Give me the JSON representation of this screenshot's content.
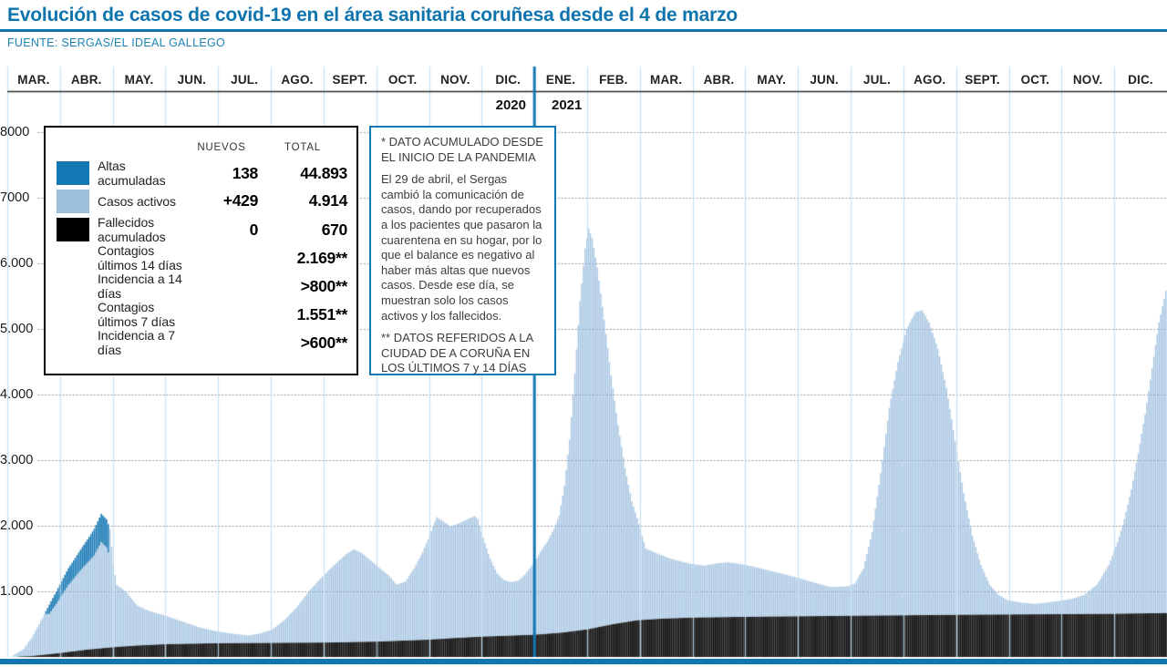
{
  "title": "Evolución de casos de covid-19 en el área sanitaria coruñesa desde el 4 de marzo",
  "source": "FUENTE: SERGAS/EL IDEAL GALLEGO",
  "colors": {
    "accent_blue": "#1176b2",
    "bar_active_blue": "#a6c5e2",
    "bar_altas_dark_blue": "#1478b4",
    "deaths_black": "#0e0e0e",
    "deaths_gap_gray": "#474747",
    "month_grid_blue": "#b3d6ea",
    "dotted_grid_gray": "#6e6e6e",
    "header_rule_dark": "#2b2b2b"
  },
  "timeline": {
    "months": [
      "MAR.",
      "ABR.",
      "MAY.",
      "JUN.",
      "JUL.",
      "AGO.",
      "SEPT.",
      "OCT.",
      "NOV.",
      "DIC.",
      "ENE.",
      "FEB.",
      "MAR.",
      "ABR.",
      "MAY.",
      "JUN.",
      "JUL.",
      "AGO.",
      "SEPT.",
      "OCT.",
      "NOV.",
      "DIC."
    ],
    "year_left": "2020",
    "year_right": "2021"
  },
  "y_axis": {
    "labels": [
      "8000",
      "7000",
      "6.000",
      "5.000",
      "4.000",
      "3.000",
      "2.000",
      "1.000"
    ],
    "values": [
      8000,
      7000,
      6000,
      5000,
      4000,
      3000,
      2000,
      1000
    ]
  },
  "legend": {
    "col_headers": [
      "NUEVOS",
      "TOTAL"
    ],
    "rows": [
      {
        "swatch": "#1478b4",
        "label": "Altas acumuladas",
        "nuevos": "138",
        "total": "44.893"
      },
      {
        "swatch": "#9dc0dd",
        "label": "Casos activos",
        "nuevos": "+429",
        "total": "4.914"
      },
      {
        "swatch": "#000000",
        "label": "Fallecidos acumulados",
        "nuevos": "0",
        "total": "670"
      },
      {
        "swatch": null,
        "label": "Contagios últimos 14 días",
        "nuevos": "",
        "total": "2.169**"
      },
      {
        "swatch": null,
        "label": "Incidencia a 14 días",
        "nuevos": "",
        "total": ">800**"
      },
      {
        "swatch": null,
        "label": "Contagios últimos 7 días",
        "nuevos": "",
        "total": "1.551**"
      },
      {
        "swatch": null,
        "label": "Incidencia a 7 días",
        "nuevos": "",
        "total": ">600**"
      }
    ]
  },
  "annotation": {
    "p1": "* DATO ACUMULADO DESDE EL INICIO DE LA PANDEMIA",
    "p2": "El 29 de abril, el Sergas cambió la comunicación de casos, dando por recuperados a los pacientes que pasaron la cuarentena en su hogar, por lo que el balance es negativo al haber más altas que nuevos casos. Desde ese día, se muestran solo los casos activos y los fallecidos.",
    "p3": "** DATOS REFERIDOS A LA CIUDAD DE A CORUÑA EN LOS ÚLTIMOS 7 y 14 DÍAS"
  },
  "chart_data": {
    "type": "bar",
    "stacked": true,
    "note": "Daily stacked bars; x is day index from 2020-03-01 (0) to 2021-12-31 (670). Values interpolated between waypoints read from the chart.",
    "x_range_days": [
      0,
      670
    ],
    "ylim": [
      0,
      8000
    ],
    "grid": true,
    "year_divider_after_month_index": 9,
    "series": [
      {
        "name": "Fallecidos acumulados",
        "color": "#0e0e0e",
        "waypoints": [
          [
            0,
            0
          ],
          [
            14,
            15
          ],
          [
            30,
            60
          ],
          [
            45,
            110
          ],
          [
            61,
            150
          ],
          [
            75,
            175
          ],
          [
            91,
            195
          ],
          [
            121,
            210
          ],
          [
            153,
            215
          ],
          [
            184,
            220
          ],
          [
            214,
            235
          ],
          [
            229,
            250
          ],
          [
            244,
            265
          ],
          [
            259,
            290
          ],
          [
            274,
            310
          ],
          [
            290,
            325
          ],
          [
            305,
            340
          ],
          [
            320,
            370
          ],
          [
            335,
            420
          ],
          [
            350,
            500
          ],
          [
            364,
            560
          ],
          [
            379,
            585
          ],
          [
            395,
            600
          ],
          [
            425,
            612
          ],
          [
            456,
            620
          ],
          [
            486,
            628
          ],
          [
            517,
            635
          ],
          [
            548,
            643
          ],
          [
            578,
            648
          ],
          [
            609,
            653
          ],
          [
            639,
            658
          ],
          [
            670,
            670
          ]
        ]
      },
      {
        "name": "Casos activos",
        "color": "#a6c5e2",
        "waypoints": [
          [
            0,
            0
          ],
          [
            2,
            0
          ],
          [
            3,
            20
          ],
          [
            9,
            110
          ],
          [
            14,
            285
          ],
          [
            19,
            520
          ],
          [
            24,
            755
          ],
          [
            30,
            1040
          ],
          [
            35,
            1275
          ],
          [
            40,
            1460
          ],
          [
            45,
            1640
          ],
          [
            50,
            1830
          ],
          [
            54,
            2050
          ],
          [
            57,
            1960
          ],
          [
            59,
            1805
          ],
          [
            61,
            1250
          ],
          [
            63,
            945
          ],
          [
            68,
            840
          ],
          [
            75,
            605
          ],
          [
            82,
            515
          ],
          [
            91,
            435
          ],
          [
            101,
            340
          ],
          [
            111,
            245
          ],
          [
            121,
            180
          ],
          [
            131,
            140
          ],
          [
            139,
            115
          ],
          [
            146,
            145
          ],
          [
            153,
            205
          ],
          [
            160,
            345
          ],
          [
            167,
            535
          ],
          [
            174,
            780
          ],
          [
            181,
            980
          ],
          [
            188,
            1160
          ],
          [
            195,
            1325
          ],
          [
            200,
            1415
          ],
          [
            205,
            1350
          ],
          [
            213,
            1165
          ],
          [
            220,
            1010
          ],
          [
            225,
            855
          ],
          [
            230,
            900
          ],
          [
            235,
            1095
          ],
          [
            240,
            1340
          ],
          [
            244,
            1585
          ],
          [
            248,
            1860
          ],
          [
            252,
            1785
          ],
          [
            256,
            1705
          ],
          [
            261,
            1745
          ],
          [
            266,
            1800
          ],
          [
            270,
            1845
          ],
          [
            272,
            1790
          ],
          [
            274,
            1590
          ],
          [
            276,
            1420
          ],
          [
            279,
            1185
          ],
          [
            283,
            960
          ],
          [
            287,
            850
          ],
          [
            291,
            815
          ],
          [
            295,
            830
          ],
          [
            299,
            915
          ],
          [
            302,
            1015
          ],
          [
            305,
            1110
          ],
          [
            308,
            1255
          ],
          [
            312,
            1400
          ],
          [
            316,
            1595
          ],
          [
            319,
            1790
          ],
          [
            322,
            2235
          ],
          [
            325,
            2930
          ],
          [
            328,
            3925
          ],
          [
            331,
            5020
          ],
          [
            334,
            5810
          ],
          [
            336,
            6105
          ],
          [
            338,
            5945
          ],
          [
            341,
            5485
          ],
          [
            345,
            4665
          ],
          [
            349,
            3790
          ],
          [
            353,
            3020
          ],
          [
            357,
            2350
          ],
          [
            361,
            1825
          ],
          [
            364,
            1560
          ],
          [
            369,
            1085
          ],
          [
            377,
            980
          ],
          [
            385,
            895
          ],
          [
            395,
            820
          ],
          [
            403,
            790
          ],
          [
            410,
            820
          ],
          [
            417,
            835
          ],
          [
            425,
            800
          ],
          [
            435,
            740
          ],
          [
            445,
            670
          ],
          [
            456,
            595
          ],
          [
            466,
            515
          ],
          [
            476,
            440
          ],
          [
            486,
            450
          ],
          [
            490,
            490
          ],
          [
            495,
            720
          ],
          [
            500,
            1270
          ],
          [
            505,
            2170
          ],
          [
            510,
            3165
          ],
          [
            515,
            3865
          ],
          [
            520,
            4365
          ],
          [
            525,
            4615
          ],
          [
            529,
            4650
          ],
          [
            533,
            4460
          ],
          [
            538,
            4060
          ],
          [
            543,
            3460
          ],
          [
            548,
            2655
          ],
          [
            553,
            1855
          ],
          [
            558,
            1205
          ],
          [
            563,
            755
          ],
          [
            568,
            455
          ],
          [
            573,
            305
          ],
          [
            578,
            220
          ],
          [
            586,
            180
          ],
          [
            594,
            160
          ],
          [
            602,
            180
          ],
          [
            609,
            205
          ],
          [
            616,
            235
          ],
          [
            623,
            295
          ],
          [
            630,
            445
          ],
          [
            637,
            745
          ],
          [
            642,
            1090
          ],
          [
            646,
            1440
          ],
          [
            650,
            1890
          ],
          [
            654,
            2440
          ],
          [
            658,
            3035
          ],
          [
            662,
            3735
          ],
          [
            666,
            4430
          ],
          [
            670,
            4914
          ]
        ]
      },
      {
        "name": "Altas acumuladas (tramo superior, marzo-abril 2020)",
        "color": "#1478b4",
        "applies_days": [
          21,
          58
        ],
        "waypoints": [
          [
            21,
            0
          ],
          [
            24,
            140
          ],
          [
            30,
            210
          ],
          [
            37,
            270
          ],
          [
            44,
            330
          ],
          [
            50,
            400
          ],
          [
            54,
            430
          ],
          [
            58,
            430
          ]
        ]
      }
    ]
  }
}
